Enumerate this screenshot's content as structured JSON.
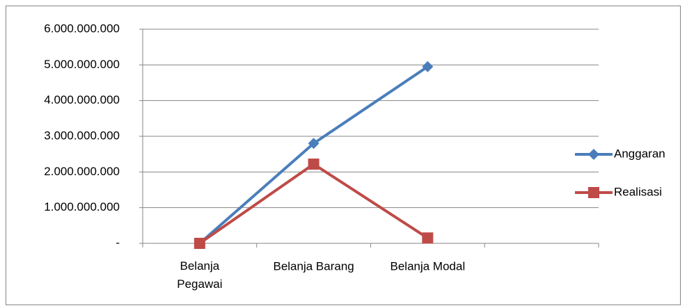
{
  "chart_data": {
    "type": "line",
    "categories": [
      "Belanja Pegawai",
      "Belanja Barang",
      "Belanja Modal",
      null
    ],
    "series": [
      {
        "name": "Anggaran",
        "color": "#4a7ebb",
        "marker": "diamond",
        "values": [
          0,
          2800000000,
          4950000000,
          null
        ]
      },
      {
        "name": "Realisasi",
        "color": "#be4b48",
        "marker": "square",
        "values": [
          0,
          2220000000,
          150000000,
          null
        ]
      }
    ],
    "ylim": [
      0,
      6000000000
    ],
    "yticks": [
      {
        "value": 0,
        "label": "-"
      },
      {
        "value": 1000000000,
        "label": "1.000.000.000"
      },
      {
        "value": 2000000000,
        "label": "2.000.000.000"
      },
      {
        "value": 3000000000,
        "label": "3.000.000.000"
      },
      {
        "value": 4000000000,
        "label": "4.000.000.000"
      },
      {
        "value": 5000000000,
        "label": "5.000.000.000"
      },
      {
        "value": 6000000000,
        "label": "6.000.000.000"
      }
    ],
    "grid": true,
    "legend": "right"
  }
}
